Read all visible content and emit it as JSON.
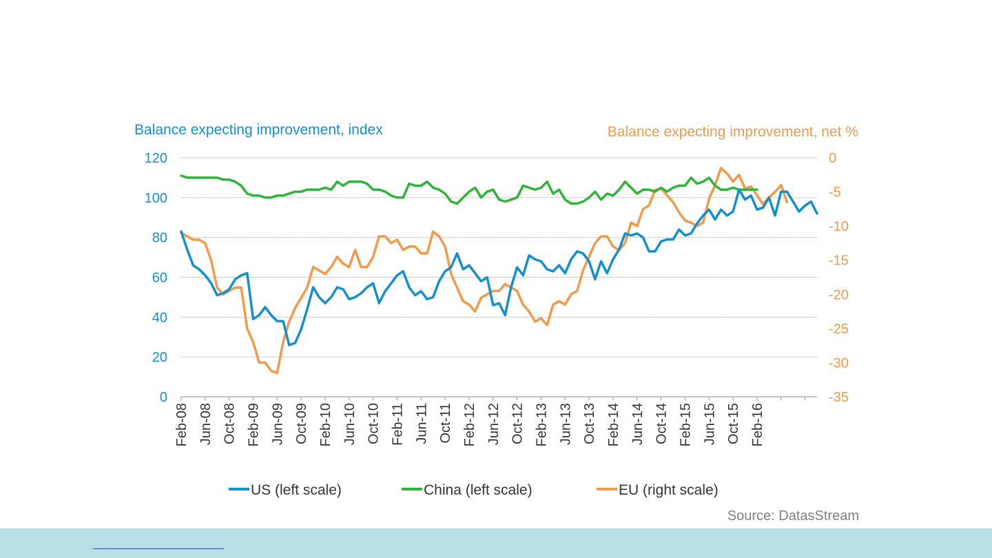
{
  "colors": {
    "us": "#138fd0",
    "china": "#2fb43a",
    "eu": "#f29a49",
    "left_axis": "#138fd0",
    "right_axis": "#f29a49",
    "grid": "#a6a6a6",
    "footer_band": "#b9dfe6"
  },
  "source": "Source: DatasStream",
  "chart_data": {
    "type": "line",
    "left_axis_title": "Balance expecting improvement, index",
    "right_axis_title": "Balance expecting improvement, net %",
    "ylim_left": [
      0,
      120
    ],
    "ylim_right": [
      -35,
      0
    ],
    "yticks_left": [
      "120",
      "100",
      "80",
      "60",
      "40",
      "20",
      "0"
    ],
    "yticks_right": [
      "0",
      "-5",
      "-10",
      "-15",
      "-20",
      "-25",
      "-30",
      "-35"
    ],
    "x_tick_labels": [
      "Feb-08",
      "Jun-08",
      "Oct-08",
      "Feb-09",
      "Jun-09",
      "Oct-09",
      "Feb-10",
      "Jun-10",
      "Oct-10",
      "Feb-11",
      "Jun-11",
      "Oct-11",
      "Feb-12",
      "Jun-12",
      "Oct-12",
      "Feb-13",
      "Jun-13",
      "Oct-13",
      "Feb-14",
      "Jun-14",
      "Oct-14",
      "Feb-15",
      "Jun-15",
      "Oct-15",
      "Feb-16"
    ],
    "x_range": [
      "Feb-08",
      "Mar-16"
    ],
    "grid": true,
    "legend_position": "bottom",
    "series": [
      {
        "name": "US (left scale)",
        "axis": "left",
        "points": [
          [
            0,
            83
          ],
          [
            1,
            74
          ],
          [
            2,
            66
          ],
          [
            3,
            64
          ],
          [
            4,
            61
          ],
          [
            5,
            57
          ],
          [
            6,
            51
          ],
          [
            7,
            52
          ],
          [
            8,
            54
          ],
          [
            9,
            59
          ],
          [
            10,
            61
          ],
          [
            11,
            62
          ],
          [
            12,
            39
          ],
          [
            13,
            41
          ],
          [
            14,
            45
          ],
          [
            15,
            41
          ],
          [
            16,
            38
          ],
          [
            17,
            38
          ],
          [
            18,
            26
          ],
          [
            19,
            27
          ],
          [
            20,
            34
          ],
          [
            21,
            44
          ],
          [
            22,
            55
          ],
          [
            23,
            50
          ],
          [
            24,
            47
          ],
          [
            25,
            50
          ],
          [
            26,
            55
          ],
          [
            27,
            54
          ],
          [
            28,
            49
          ],
          [
            29,
            50
          ],
          [
            30,
            52
          ],
          [
            31,
            55
          ],
          [
            32,
            57
          ],
          [
            33,
            47
          ],
          [
            34,
            53
          ],
          [
            35,
            57
          ],
          [
            36,
            61
          ],
          [
            37,
            63
          ],
          [
            38,
            55
          ],
          [
            39,
            51
          ],
          [
            40,
            53
          ],
          [
            41,
            49
          ],
          [
            42,
            50
          ],
          [
            43,
            58
          ],
          [
            44,
            63
          ],
          [
            45,
            65
          ],
          [
            46,
            72
          ],
          [
            47,
            64
          ],
          [
            48,
            66
          ],
          [
            49,
            62
          ],
          [
            50,
            58
          ],
          [
            51,
            60
          ],
          [
            52,
            46
          ],
          [
            53,
            47
          ],
          [
            54,
            41
          ],
          [
            55,
            55
          ],
          [
            56,
            65
          ],
          [
            57,
            61
          ],
          [
            58,
            71
          ],
          [
            59,
            69
          ],
          [
            60,
            68
          ],
          [
            61,
            64
          ],
          [
            62,
            63
          ],
          [
            63,
            66
          ],
          [
            64,
            62
          ],
          [
            65,
            69
          ],
          [
            66,
            73
          ],
          [
            67,
            72
          ],
          [
            68,
            68
          ],
          [
            69,
            59
          ],
          [
            70,
            68
          ],
          [
            71,
            62
          ],
          [
            72,
            69
          ],
          [
            73,
            74
          ],
          [
            74,
            82
          ],
          [
            75,
            81
          ],
          [
            76,
            82
          ],
          [
            77,
            80
          ],
          [
            78,
            73
          ],
          [
            79,
            73
          ],
          [
            80,
            78
          ],
          [
            81,
            79
          ],
          [
            82,
            79
          ],
          [
            83,
            84
          ],
          [
            84,
            81
          ],
          [
            85,
            82
          ],
          [
            86,
            87
          ],
          [
            87,
            91
          ],
          [
            88,
            94
          ],
          [
            89,
            89
          ],
          [
            90,
            94
          ],
          [
            91,
            91
          ],
          [
            92,
            93
          ],
          [
            93,
            104
          ],
          [
            94,
            99
          ],
          [
            95,
            101
          ],
          [
            96,
            94
          ],
          [
            97,
            95
          ],
          [
            98,
            100
          ],
          [
            99,
            91
          ],
          [
            100,
            103
          ],
          [
            101,
            103
          ],
          [
            102,
            98
          ],
          [
            103,
            93
          ],
          [
            104,
            96
          ],
          [
            105,
            98
          ],
          [
            106,
            92
          ]
        ]
      },
      {
        "name": "China (left scale)",
        "axis": "left",
        "points": [
          [
            0,
            111
          ],
          [
            1,
            110
          ],
          [
            2,
            110
          ],
          [
            3,
            110
          ],
          [
            4,
            110
          ],
          [
            5,
            110
          ],
          [
            6,
            110
          ],
          [
            7,
            109
          ],
          [
            8,
            109
          ],
          [
            9,
            108
          ],
          [
            10,
            106
          ],
          [
            11,
            102
          ],
          [
            12,
            101
          ],
          [
            13,
            101
          ],
          [
            14,
            100
          ],
          [
            15,
            100
          ],
          [
            16,
            101
          ],
          [
            17,
            101
          ],
          [
            18,
            102
          ],
          [
            19,
            103
          ],
          [
            20,
            103
          ],
          [
            21,
            104
          ],
          [
            22,
            104
          ],
          [
            23,
            104
          ],
          [
            24,
            105
          ],
          [
            25,
            104
          ],
          [
            26,
            108
          ],
          [
            27,
            106
          ],
          [
            28,
            108
          ],
          [
            29,
            108
          ],
          [
            30,
            108
          ],
          [
            31,
            107
          ],
          [
            32,
            104
          ],
          [
            33,
            104
          ],
          [
            34,
            103
          ],
          [
            35,
            101
          ],
          [
            36,
            100
          ],
          [
            37,
            100
          ],
          [
            38,
            107
          ],
          [
            39,
            106
          ],
          [
            40,
            106
          ],
          [
            41,
            108
          ],
          [
            42,
            105
          ],
          [
            43,
            104
          ],
          [
            44,
            102
          ],
          [
            45,
            98
          ],
          [
            46,
            97
          ],
          [
            47,
            100
          ],
          [
            48,
            103
          ],
          [
            49,
            105
          ],
          [
            50,
            100
          ],
          [
            51,
            103
          ],
          [
            52,
            104
          ],
          [
            53,
            99
          ],
          [
            54,
            98
          ],
          [
            55,
            99
          ],
          [
            56,
            100
          ],
          [
            57,
            106
          ],
          [
            58,
            105
          ],
          [
            59,
            104
          ],
          [
            60,
            105
          ],
          [
            61,
            108
          ],
          [
            62,
            102
          ],
          [
            63,
            104
          ],
          [
            64,
            99
          ],
          [
            65,
            97
          ],
          [
            66,
            97
          ],
          [
            67,
            98
          ],
          [
            68,
            100
          ],
          [
            69,
            103
          ],
          [
            70,
            99
          ],
          [
            71,
            102
          ],
          [
            72,
            101
          ],
          [
            73,
            104
          ],
          [
            74,
            108
          ],
          [
            75,
            105
          ],
          [
            76,
            102
          ],
          [
            77,
            104
          ],
          [
            78,
            104
          ],
          [
            79,
            103
          ],
          [
            80,
            105
          ],
          [
            81,
            103
          ],
          [
            82,
            105
          ],
          [
            83,
            106
          ],
          [
            84,
            106
          ],
          [
            85,
            110
          ],
          [
            86,
            107
          ],
          [
            87,
            108
          ],
          [
            88,
            110
          ],
          [
            89,
            106
          ],
          [
            90,
            104
          ],
          [
            91,
            104
          ],
          [
            92,
            105
          ],
          [
            93,
            104
          ],
          [
            94,
            104
          ],
          [
            95,
            104
          ],
          [
            96,
            104
          ]
        ]
      },
      {
        "name": "EU (right scale)",
        "axis": "right",
        "points": [
          [
            0,
            -11
          ],
          [
            1,
            -11.5
          ],
          [
            2,
            -12
          ],
          [
            3,
            -12
          ],
          [
            4,
            -12.5
          ],
          [
            5,
            -15
          ],
          [
            6,
            -19
          ],
          [
            7,
            -20
          ],
          [
            8,
            -19.5
          ],
          [
            9,
            -19
          ],
          [
            10,
            -19
          ],
          [
            11,
            -25
          ],
          [
            12,
            -27
          ],
          [
            13,
            -30
          ],
          [
            14,
            -30
          ],
          [
            15,
            -31.2
          ],
          [
            16,
            -31.5
          ],
          [
            17,
            -27
          ],
          [
            18,
            -24
          ],
          [
            19,
            -22
          ],
          [
            20,
            -20.5
          ],
          [
            21,
            -19
          ],
          [
            22,
            -16
          ],
          [
            23,
            -16.5
          ],
          [
            24,
            -17
          ],
          [
            25,
            -16
          ],
          [
            26,
            -14.5
          ],
          [
            27,
            -15.5
          ],
          [
            28,
            -16
          ],
          [
            29,
            -13.5
          ],
          [
            30,
            -16
          ],
          [
            31,
            -16
          ],
          [
            32,
            -14.5
          ],
          [
            33,
            -11.5
          ],
          [
            34,
            -11.5
          ],
          [
            35,
            -12.5
          ],
          [
            36,
            -12
          ],
          [
            37,
            -13.5
          ],
          [
            38,
            -13
          ],
          [
            39,
            -13
          ],
          [
            40,
            -14
          ],
          [
            41,
            -14
          ],
          [
            42,
            -10.8
          ],
          [
            43,
            -11.5
          ],
          [
            44,
            -13
          ],
          [
            45,
            -17
          ],
          [
            46,
            -19
          ],
          [
            47,
            -21
          ],
          [
            48,
            -21.5
          ],
          [
            49,
            -22.5
          ],
          [
            50,
            -20.5
          ],
          [
            51,
            -20
          ],
          [
            52,
            -19.5
          ],
          [
            53,
            -19.5
          ],
          [
            54,
            -18.5
          ],
          [
            55,
            -19
          ],
          [
            56,
            -19.5
          ],
          [
            57,
            -21.5
          ],
          [
            58,
            -22.5
          ],
          [
            59,
            -24
          ],
          [
            60,
            -23.5
          ],
          [
            61,
            -24.5
          ],
          [
            62,
            -21.5
          ],
          [
            63,
            -21
          ],
          [
            64,
            -21.5
          ],
          [
            65,
            -20
          ],
          [
            66,
            -19.5
          ],
          [
            67,
            -16.5
          ],
          [
            68,
            -14.5
          ],
          [
            69,
            -12.5
          ],
          [
            70,
            -11.5
          ],
          [
            71,
            -11.5
          ],
          [
            72,
            -13
          ],
          [
            73,
            -13.5
          ],
          [
            74,
            -12.5
          ],
          [
            75,
            -9.5
          ],
          [
            76,
            -10
          ],
          [
            77,
            -7.5
          ],
          [
            78,
            -7
          ],
          [
            79,
            -4.7
          ],
          [
            80,
            -4.5
          ],
          [
            81,
            -5.5
          ],
          [
            82,
            -6.5
          ],
          [
            83,
            -8
          ],
          [
            84,
            -9.2
          ],
          [
            85,
            -9.5
          ],
          [
            86,
            -10
          ],
          [
            87,
            -9.5
          ],
          [
            88,
            -6
          ],
          [
            89,
            -4
          ],
          [
            90,
            -1.5
          ],
          [
            91,
            -2.3
          ],
          [
            92,
            -3.5
          ],
          [
            93,
            -2.5
          ],
          [
            94,
            -4.5
          ],
          [
            95,
            -4.2
          ],
          [
            96,
            -5.5
          ],
          [
            97,
            -6.8
          ],
          [
            98,
            -5.8
          ],
          [
            99,
            -5
          ],
          [
            100,
            -4
          ],
          [
            101,
            -6.5
          ]
        ]
      }
    ]
  }
}
